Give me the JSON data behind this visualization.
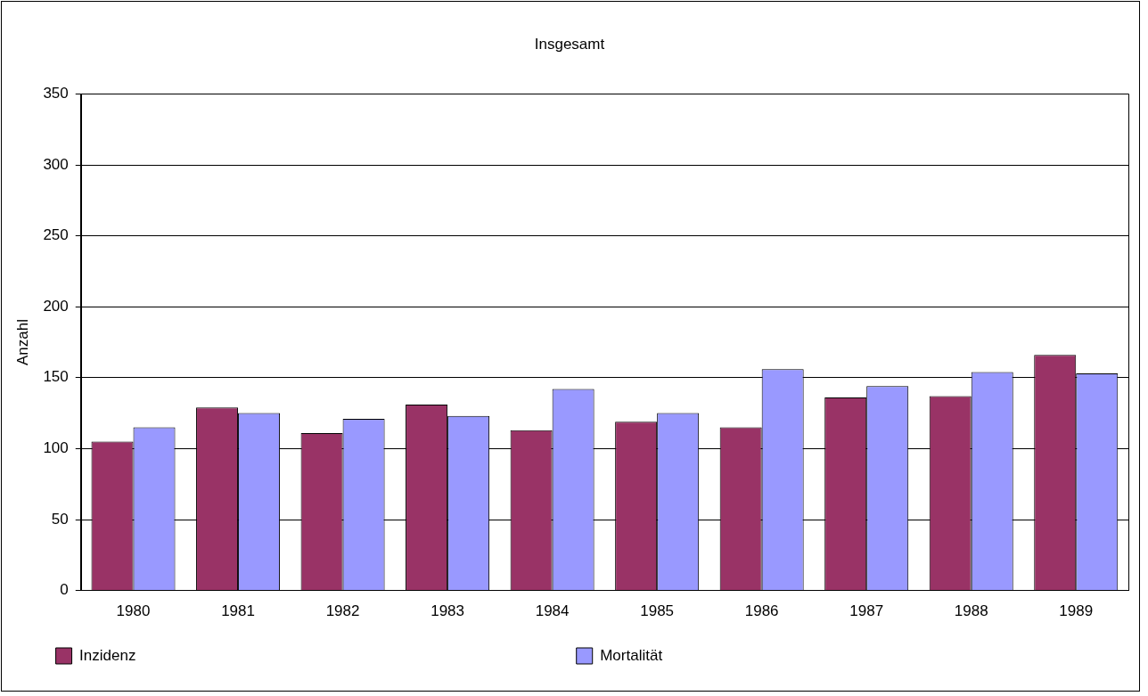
{
  "chart_data": {
    "type": "bar",
    "title": "Insgesamt",
    "ylabel": "Anzahl",
    "categories": [
      "1980",
      "1981",
      "1982",
      "1983",
      "1984",
      "1985",
      "1986",
      "1987",
      "1988",
      "1989"
    ],
    "series": [
      {
        "name": "Inzidenz",
        "color": "#993366",
        "values": [
          105,
          129,
          111,
          131,
          113,
          119,
          115,
          136,
          137,
          166
        ]
      },
      {
        "name": "Mortalität",
        "color": "#9999ff",
        "values": [
          115,
          125,
          121,
          123,
          142,
          125,
          156,
          144,
          154,
          153
        ]
      }
    ],
    "ylim": [
      0,
      350
    ],
    "yticks": [
      0,
      50,
      100,
      150,
      200,
      250,
      300,
      350
    ],
    "grid": "y",
    "legend": "bottom"
  }
}
